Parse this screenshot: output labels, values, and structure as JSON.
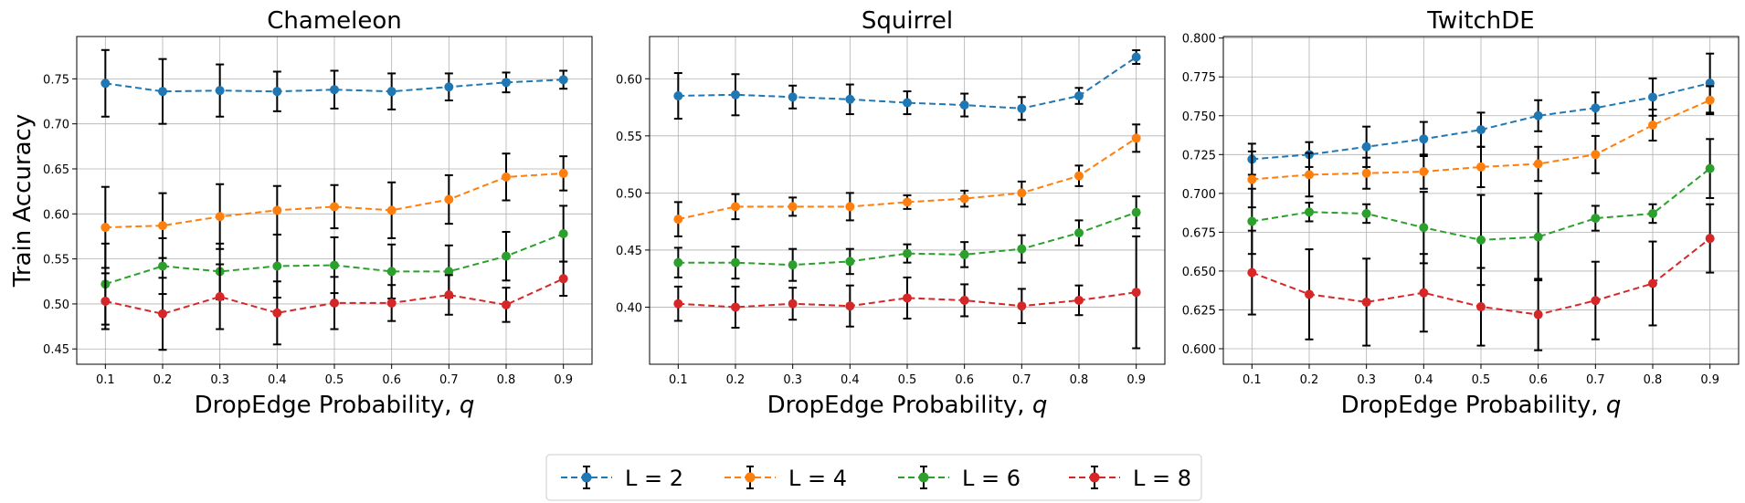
{
  "chart_data": [
    {
      "type": "line",
      "title": "Chameleon",
      "xlabel": "DropEdge Probability, q",
      "ylabel": "Train Accuracy",
      "x": [
        0.1,
        0.2,
        0.3,
        0.4,
        0.5,
        0.6,
        0.7,
        0.8,
        0.9
      ],
      "xlim": [
        0.05,
        0.95
      ],
      "ylim": [
        0.433,
        0.797
      ],
      "yticks": [
        0.45,
        0.5,
        0.55,
        0.6,
        0.65,
        0.7,
        0.75
      ],
      "ytick_labels": [
        "0.45",
        "0.50",
        "0.55",
        "0.60",
        "0.65",
        "0.70",
        "0.75"
      ],
      "grid": true,
      "series": [
        {
          "name": "L = 2",
          "color": "#1f77b4",
          "values": [
            0.745,
            0.736,
            0.737,
            0.736,
            0.738,
            0.736,
            0.741,
            0.746,
            0.749
          ],
          "errors": [
            0.037,
            0.036,
            0.029,
            0.022,
            0.021,
            0.02,
            0.015,
            0.011,
            0.01
          ]
        },
        {
          "name": "L = 4",
          "color": "#ff7f0e",
          "values": [
            0.585,
            0.587,
            0.597,
            0.604,
            0.608,
            0.604,
            0.616,
            0.641,
            0.645
          ],
          "errors": [
            0.045,
            0.036,
            0.036,
            0.027,
            0.024,
            0.031,
            0.027,
            0.026,
            0.019
          ]
        },
        {
          "name": "L = 6",
          "color": "#2ca02c",
          "values": [
            0.522,
            0.542,
            0.536,
            0.542,
            0.543,
            0.536,
            0.536,
            0.553,
            0.578
          ],
          "errors": [
            0.045,
            0.031,
            0.031,
            0.035,
            0.031,
            0.03,
            0.029,
            0.027,
            0.031
          ]
        },
        {
          "name": "L = 8",
          "color": "#d62728",
          "values": [
            0.503,
            0.489,
            0.508,
            0.49,
            0.501,
            0.501,
            0.51,
            0.499,
            0.528
          ],
          "errors": [
            0.031,
            0.04,
            0.036,
            0.035,
            0.029,
            0.02,
            0.022,
            0.019,
            0.019
          ]
        }
      ]
    },
    {
      "type": "line",
      "title": "Squirrel",
      "xlabel": "DropEdge Probability, q",
      "ylabel": "",
      "x": [
        0.1,
        0.2,
        0.3,
        0.4,
        0.5,
        0.6,
        0.7,
        0.8,
        0.9
      ],
      "xlim": [
        0.05,
        0.95
      ],
      "ylim": [
        0.35,
        0.637
      ],
      "yticks": [
        0.4,
        0.45,
        0.5,
        0.55,
        0.6
      ],
      "ytick_labels": [
        "0.40",
        "0.45",
        "0.50",
        "0.55",
        "0.60"
      ],
      "grid": true,
      "series": [
        {
          "name": "L = 2",
          "color": "#1f77b4",
          "values": [
            0.585,
            0.586,
            0.584,
            0.582,
            0.579,
            0.577,
            0.574,
            0.585,
            0.619
          ],
          "errors": [
            0.02,
            0.018,
            0.01,
            0.013,
            0.01,
            0.01,
            0.01,
            0.007,
            0.006
          ]
        },
        {
          "name": "L = 4",
          "color": "#ff7f0e",
          "values": [
            0.477,
            0.488,
            0.488,
            0.488,
            0.492,
            0.495,
            0.5,
            0.515,
            0.548
          ],
          "errors": [
            0.015,
            0.011,
            0.008,
            0.012,
            0.006,
            0.007,
            0.01,
            0.009,
            0.012
          ]
        },
        {
          "name": "L = 6",
          "color": "#2ca02c",
          "values": [
            0.439,
            0.439,
            0.437,
            0.44,
            0.447,
            0.446,
            0.451,
            0.465,
            0.483
          ],
          "errors": [
            0.013,
            0.014,
            0.014,
            0.011,
            0.008,
            0.011,
            0.012,
            0.011,
            0.014
          ]
        },
        {
          "name": "L = 8",
          "color": "#d62728",
          "values": [
            0.403,
            0.4,
            0.403,
            0.401,
            0.408,
            0.406,
            0.401,
            0.406,
            0.413
          ],
          "errors": [
            0.015,
            0.018,
            0.014,
            0.018,
            0.018,
            0.014,
            0.015,
            0.013,
            0.049
          ]
        }
      ]
    },
    {
      "type": "line",
      "title": "TwitchDE",
      "xlabel": "DropEdge Probability, q",
      "ylabel": "",
      "x": [
        0.1,
        0.2,
        0.3,
        0.4,
        0.5,
        0.6,
        0.7,
        0.8,
        0.9
      ],
      "xlim": [
        0.05,
        0.95
      ],
      "ylim": [
        0.59,
        0.801
      ],
      "yticks": [
        0.6,
        0.625,
        0.65,
        0.675,
        0.7,
        0.725,
        0.75,
        0.775,
        0.8
      ],
      "ytick_labels": [
        "0.600",
        "0.625",
        "0.650",
        "0.675",
        "0.700",
        "0.725",
        "0.750",
        "0.775",
        "0.800"
      ],
      "grid": true,
      "series": [
        {
          "name": "L = 2",
          "color": "#1f77b4",
          "values": [
            0.722,
            0.725,
            0.73,
            0.735,
            0.741,
            0.75,
            0.755,
            0.762,
            0.771
          ],
          "errors": [
            0.01,
            0.008,
            0.013,
            0.011,
            0.011,
            0.01,
            0.01,
            0.012,
            0.019
          ]
        },
        {
          "name": "L = 4",
          "color": "#ff7f0e",
          "values": [
            0.709,
            0.712,
            0.713,
            0.714,
            0.717,
            0.719,
            0.725,
            0.744,
            0.76
          ],
          "errors": [
            0.018,
            0.014,
            0.01,
            0.011,
            0.013,
            0.011,
            0.012,
            0.01,
            0.009
          ]
        },
        {
          "name": "L = 6",
          "color": "#2ca02c",
          "values": [
            0.682,
            0.688,
            0.687,
            0.678,
            0.67,
            0.672,
            0.684,
            0.687,
            0.716
          ],
          "errors": [
            0.021,
            0.006,
            0.006,
            0.023,
            0.029,
            0.028,
            0.008,
            0.006,
            0.019
          ]
        },
        {
          "name": "L = 8",
          "color": "#d62728",
          "values": [
            0.649,
            0.635,
            0.63,
            0.636,
            0.627,
            0.622,
            0.631,
            0.642,
            0.671
          ],
          "errors": [
            0.027,
            0.029,
            0.028,
            0.025,
            0.025,
            0.023,
            0.025,
            0.027,
            0.022
          ]
        }
      ]
    }
  ],
  "legend": {
    "placement": "bottom-center",
    "entries": [
      "L = 2",
      "L = 4",
      "L = 6",
      "L = 8"
    ],
    "colors": [
      "#1f77b4",
      "#ff7f0e",
      "#2ca02c",
      "#d62728"
    ]
  }
}
